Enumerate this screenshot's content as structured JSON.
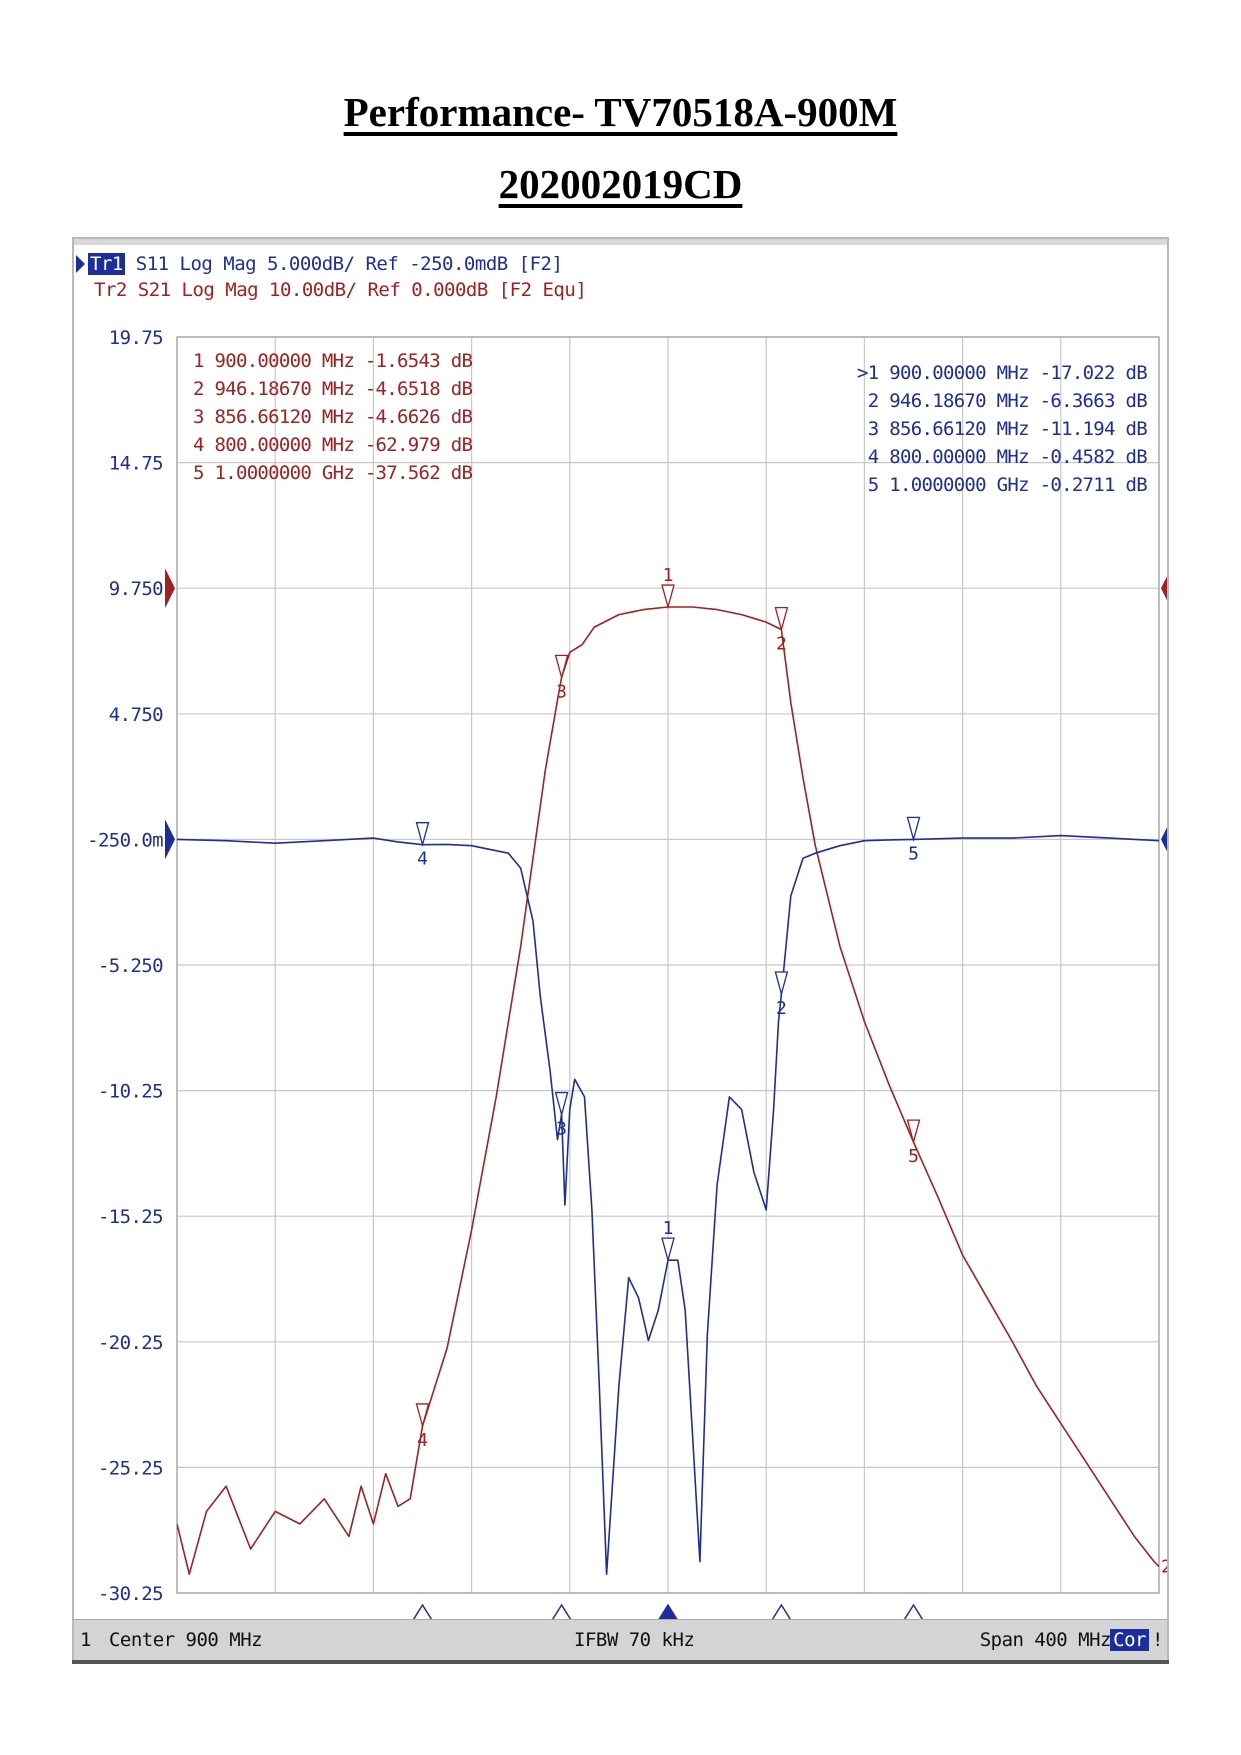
{
  "page": {
    "title_line1": "Performance- TV70518A-900M",
    "title_line2": "202002019CD"
  },
  "analyzer": {
    "header": {
      "tr1_tag": "Tr1",
      "tr1_rest": " S11 Log Mag 5.000dB/ Ref -250.0mdB [F2]",
      "tr2": "Tr2 S21 Log Mag 10.00dB/ Ref 0.000dB [F2 Equ]"
    },
    "statusbar": {
      "channel": "1",
      "center": " Center 900 MHz",
      "ifbw": "IFBW 70 kHz",
      "span": "Span 400 MHz",
      "cor": "Cor",
      "warn": "!"
    }
  },
  "colors": {
    "s11": "#1c2e9e",
    "s21": "#a32020",
    "grid": "#c8c8c8",
    "axis_text": "#1c2e9e"
  },
  "chart_data": {
    "type": "line",
    "x_range_mhz": [
      700,
      1100
    ],
    "ylim": [
      -30.25,
      19.75
    ],
    "y_ticks": [
      "19.75",
      "14.75",
      "9.750",
      "4.750",
      "-250.0m",
      "-5.250",
      "-10.25",
      "-15.25",
      "-20.25",
      "-25.25",
      "-30.25"
    ],
    "grid": true,
    "ref_marker_s21_y": 9.75,
    "ref_marker_s11_y": -0.25,
    "s21_marker_table": [
      "1  900.00000 MHz -1.6543 dB",
      "2  946.18670 MHz -4.6518 dB",
      "3  856.66120 MHz -4.6626 dB",
      "4  800.00000 MHz -62.979 dB",
      "5  1.0000000 GHz -37.562 dB"
    ],
    "s11_marker_table": [
      ">1  900.00000 MHz -17.022 dB",
      " 2  946.18670 MHz -6.3663 dB",
      " 3  856.66120 MHz -11.194 dB",
      " 4  800.00000 MHz -0.4582 dB",
      " 5  1.0000000 GHz -0.2711 dB"
    ],
    "markers_x_mhz": [
      900,
      946.1867,
      856.6612,
      800,
      1000
    ],
    "marker_labels": [
      "1",
      "2",
      "3",
      "4",
      "5"
    ],
    "active_marker": "1",
    "series": [
      {
        "name": "S21",
        "x": [
          700,
          705,
          712,
          720,
          730,
          740,
          750,
          760,
          770,
          775,
          780,
          785,
          790,
          795,
          800,
          810,
          820,
          830,
          840,
          845,
          850,
          855,
          856.66,
          860,
          865,
          870,
          880,
          890,
          900,
          910,
          920,
          930,
          940,
          946.19,
          950,
          955,
          960,
          970,
          980,
          990,
          1000,
          1010,
          1020,
          1030,
          1040,
          1050,
          1060,
          1070,
          1080,
          1090,
          1098,
          1100
        ],
        "values": [
          -27.5,
          -29.5,
          -27.0,
          -26.0,
          -28.5,
          -27.0,
          -27.5,
          -26.5,
          -28.0,
          -26.0,
          -27.5,
          -25.5,
          -26.8,
          -26.5,
          -23.6,
          -20.5,
          -15.8,
          -10.5,
          -4.5,
          -1.0,
          2.5,
          5.3,
          6.2,
          7.2,
          7.5,
          8.2,
          8.7,
          8.9,
          9.0,
          9.0,
          8.9,
          8.7,
          8.4,
          8.1,
          5.2,
          2.2,
          -0.5,
          -4.5,
          -7.5,
          -10.0,
          -12.3,
          -14.5,
          -16.8,
          -18.5,
          -20.2,
          -22.0,
          -23.5,
          -25.0,
          -26.5,
          -28.0,
          -29.0,
          -29.2
        ]
      },
      {
        "name": "S11",
        "x": [
          700,
          720,
          740,
          760,
          780,
          790,
          800,
          810,
          820,
          835,
          840,
          845,
          848,
          852,
          855,
          856.66,
          858,
          860,
          862,
          866,
          869,
          872,
          875,
          880,
          884,
          888,
          892,
          896,
          900,
          904,
          907,
          910,
          913,
          916,
          920,
          925,
          930,
          935,
          940,
          943,
          945,
          946.19,
          950,
          955,
          960,
          970,
          980,
          990,
          1000,
          1020,
          1040,
          1060,
          1080,
          1100
        ],
        "values": [
          -0.25,
          -0.3,
          -0.4,
          -0.3,
          -0.2,
          -0.35,
          -0.46,
          -0.45,
          -0.5,
          -0.8,
          -1.4,
          -3.5,
          -6.5,
          -9.5,
          -12.2,
          -11.2,
          -14.8,
          -11.0,
          -9.8,
          -10.5,
          -15.0,
          -22.0,
          -29.5,
          -22.0,
          -17.7,
          -18.5,
          -20.2,
          -19.0,
          -17.0,
          -17.0,
          -19.0,
          -24.0,
          -29.0,
          -20.0,
          -14.0,
          -10.5,
          -11.0,
          -13.5,
          -15.0,
          -11.0,
          -7.5,
          -6.4,
          -2.5,
          -1.0,
          -0.8,
          -0.5,
          -0.3,
          -0.27,
          -0.25,
          -0.2,
          -0.2,
          -0.1,
          -0.2,
          -0.3
        ]
      }
    ]
  }
}
